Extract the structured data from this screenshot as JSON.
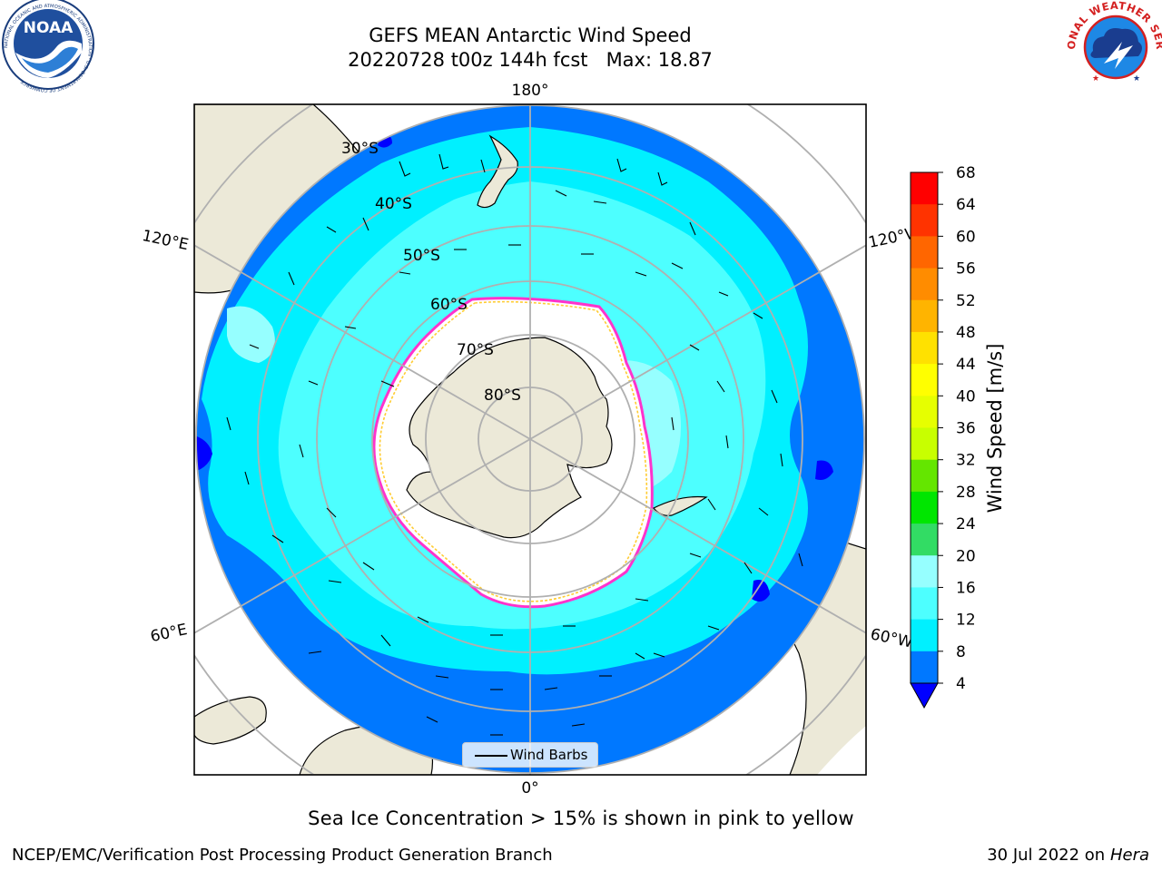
{
  "header": {
    "title_line1": "GEFS MEAN Antarctic Wind Speed",
    "title_line2": "20220728 t00z 144h fcst   Max: 18.87"
  },
  "logos": {
    "left": "noaa-logo",
    "left_text": "NOAA",
    "left_ring_text": "NATIONAL OCEANIC AND ATMOSPHERIC ADMINISTRATION · U.S. DEPARTMENT OF COMMERCE",
    "right": "nws-logo",
    "right_ring_text": "NATIONAL WEATHER SERVICE"
  },
  "map": {
    "projection": "south-polar-stereographic",
    "grid": true,
    "lon_labels": {
      "top": "180°",
      "bottom": "0°",
      "left_upper": "120°E",
      "left_lower": "60°E",
      "right_upper": "120°W",
      "right_lower": "60°W"
    },
    "lat_labels": [
      "30°S",
      "40°S",
      "50°S",
      "60°S",
      "70°S",
      "80°S"
    ],
    "colors": {
      "land": "#ece9d8",
      "ice": "#ffffff",
      "ice_edge_pink": "#ff33cc",
      "ice_edge_yellow": "#ffcc33",
      "grid": "#b0b0b0"
    }
  },
  "colorbar": {
    "label": "Wind Speed [m/s]",
    "ticks": [
      "68",
      "64",
      "60",
      "56",
      "52",
      "48",
      "44",
      "40",
      "36",
      "32",
      "28",
      "24",
      "20",
      "16",
      "12",
      "8",
      "4"
    ],
    "colors": [
      "#ff0000",
      "#ff3300",
      "#ff6600",
      "#ff8c00",
      "#ffb400",
      "#ffe100",
      "#ffff00",
      "#e6ff00",
      "#c8ff00",
      "#64e600",
      "#00e600",
      "#32dc64",
      "#96ffff",
      "#4dffff",
      "#00f0ff",
      "#0078ff"
    ],
    "under_color": "#0000ff"
  },
  "legend": {
    "label": "Wind Barbs"
  },
  "caption": "Sea Ice Concentration > 15% is shown in pink to yellow",
  "footer": {
    "left": "NCEP/EMC/Verification Post Processing Product Generation Branch",
    "right_date": "30 Jul 2022 on ",
    "right_machine": "Hera"
  }
}
